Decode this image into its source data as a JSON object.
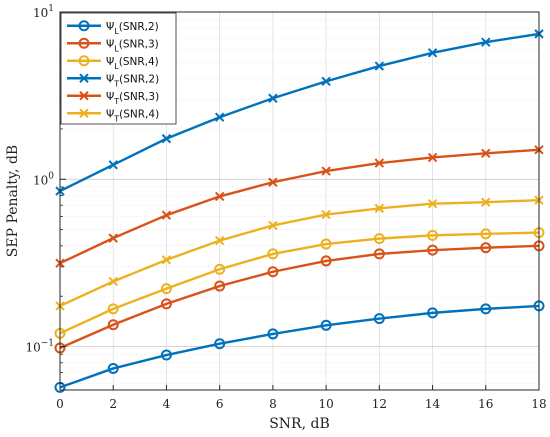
{
  "chart_data": {
    "type": "line",
    "xlabel": "SNR, dB",
    "ylabel": "SEP Penalty, dB",
    "xlim": [
      0,
      18
    ],
    "ylim": [
      0.055,
      10
    ],
    "yscale": "log",
    "grid": true,
    "legend_position": "top-left",
    "x_ticks": [
      "0",
      "2",
      "4",
      "6",
      "8",
      "10",
      "12",
      "14",
      "16",
      "18"
    ],
    "y_ticks": [
      {
        "value": 0.1,
        "base": "10",
        "exp": "−1"
      },
      {
        "value": 1,
        "base": "10",
        "exp": "0"
      },
      {
        "value": 10,
        "base": "10",
        "exp": "1"
      }
    ],
    "x": [
      0,
      2,
      4,
      6,
      8,
      10,
      12,
      14,
      16,
      18
    ],
    "series": [
      {
        "name": "Ψ_L(SNR,2)",
        "legend_main": "Ψ",
        "legend_sub": "L",
        "legend_rest": "(SNR,2)",
        "marker": "o",
        "color": "#0072BD",
        "values": [
          0.057,
          0.074,
          0.089,
          0.104,
          0.119,
          0.134,
          0.147,
          0.159,
          0.168,
          0.175
        ]
      },
      {
        "name": "Ψ_L(SNR,3)",
        "legend_main": "Ψ",
        "legend_sub": "L",
        "legend_rest": "(SNR,3)",
        "marker": "o",
        "color": "#D95319",
        "values": [
          0.098,
          0.135,
          0.18,
          0.23,
          0.28,
          0.325,
          0.358,
          0.377,
          0.39,
          0.4
        ]
      },
      {
        "name": "Ψ_L(SNR,4)",
        "legend_main": "Ψ",
        "legend_sub": "L",
        "legend_rest": "(SNR,4)",
        "marker": "o",
        "color": "#EDB120",
        "values": [
          0.12,
          0.168,
          0.222,
          0.29,
          0.358,
          0.41,
          0.442,
          0.462,
          0.472,
          0.48
        ]
      },
      {
        "name": "Ψ_T(SNR,2)",
        "legend_main": "Ψ",
        "legend_sub": "T",
        "legend_rest": "(SNR,2)",
        "marker": "x",
        "color": "#0072BD",
        "values": [
          0.85,
          1.22,
          1.75,
          2.35,
          3.05,
          3.85,
          4.75,
          5.7,
          6.6,
          7.4
        ]
      },
      {
        "name": "Ψ_T(SNR,3)",
        "legend_main": "Ψ",
        "legend_sub": "T",
        "legend_rest": "(SNR,3)",
        "marker": "x",
        "color": "#D95319",
        "values": [
          0.315,
          0.445,
          0.61,
          0.79,
          0.96,
          1.12,
          1.25,
          1.35,
          1.43,
          1.5
        ]
      },
      {
        "name": "Ψ_T(SNR,4)",
        "legend_main": "Ψ",
        "legend_sub": "T",
        "legend_rest": "(SNR,4)",
        "marker": "x",
        "color": "#EDB120",
        "values": [
          0.175,
          0.245,
          0.33,
          0.43,
          0.53,
          0.615,
          0.67,
          0.715,
          0.73,
          0.75
        ]
      }
    ]
  }
}
